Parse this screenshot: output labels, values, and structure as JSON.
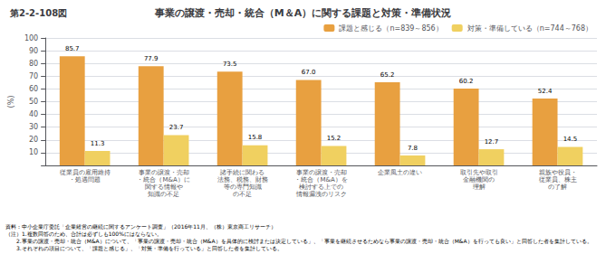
{
  "chart_data": {
    "type": "bar",
    "title": "事業の譲渡・売却・統合（M＆A）に関する課題と対策・準備状況",
    "subtitle": "第2-2-108図",
    "categories": [
      "従業員の雇用維持\n・処遇問題",
      "事業の譲渡・売却\n・統合（M&A）に\n関する情報や\n知識の不足",
      "諸手続に関わる\n法務、税務、財務\n等の専門知識\nの不足",
      "事業の譲渡・売却\n・統合（M&A）を\n検討する上での\n情報漏洩のリスク",
      "企業風土の違い",
      "取引先や取引\n金融機関の\n理解",
      "親族や役員・\n従業員、株主\nの了解"
    ],
    "series": [
      {
        "name": "課題と感じる（n=839～856）",
        "color": "#E8A040",
        "values": [
          85.7,
          77.9,
          73.5,
          67.0,
          65.2,
          60.2,
          52.4
        ],
        "value_labels": [
          "85.7",
          "77.9",
          "73.5",
          "67.0",
          "65.2",
          "60.2",
          "52.4"
        ]
      },
      {
        "name": "対策・準備している（n=744～768）",
        "color": "#F0D060",
        "values": [
          11.3,
          23.7,
          15.8,
          15.2,
          7.8,
          12.7,
          14.5
        ],
        "value_labels": [
          "11.3",
          "23.7",
          "15.8",
          "15.2",
          "7.8",
          "12.7",
          "14.5"
        ]
      }
    ],
    "ylabel": "(%)",
    "ylim": [
      0,
      100
    ],
    "yticks": [
      10,
      20,
      30,
      40,
      50,
      60,
      70,
      80,
      90,
      100
    ],
    "grid": true,
    "legend": "upper right",
    "data_labels": true,
    "annotations": [
      "資料：中小企業庁委託「企業経営の継続に関するアンケート調査」（2016年11月、（株）東京商工リサーチ）",
      "（注）1.複数回答のため、合計は必ずしも100%にはならない。",
      "　　2.事業の譲渡・売却・統合（M&A）について、「事業の譲渡・売却・統合（M&A）を具体的に検討または決定している」、「事業を継続させるためなら事業の譲渡・売却・統合（M&A）を行っても良い」と回答した者を集計している。",
      "　　3.それぞれの項目について、「課題と感じる」、「対策・準備を行っている」と回答した者を集計している。"
    ]
  }
}
